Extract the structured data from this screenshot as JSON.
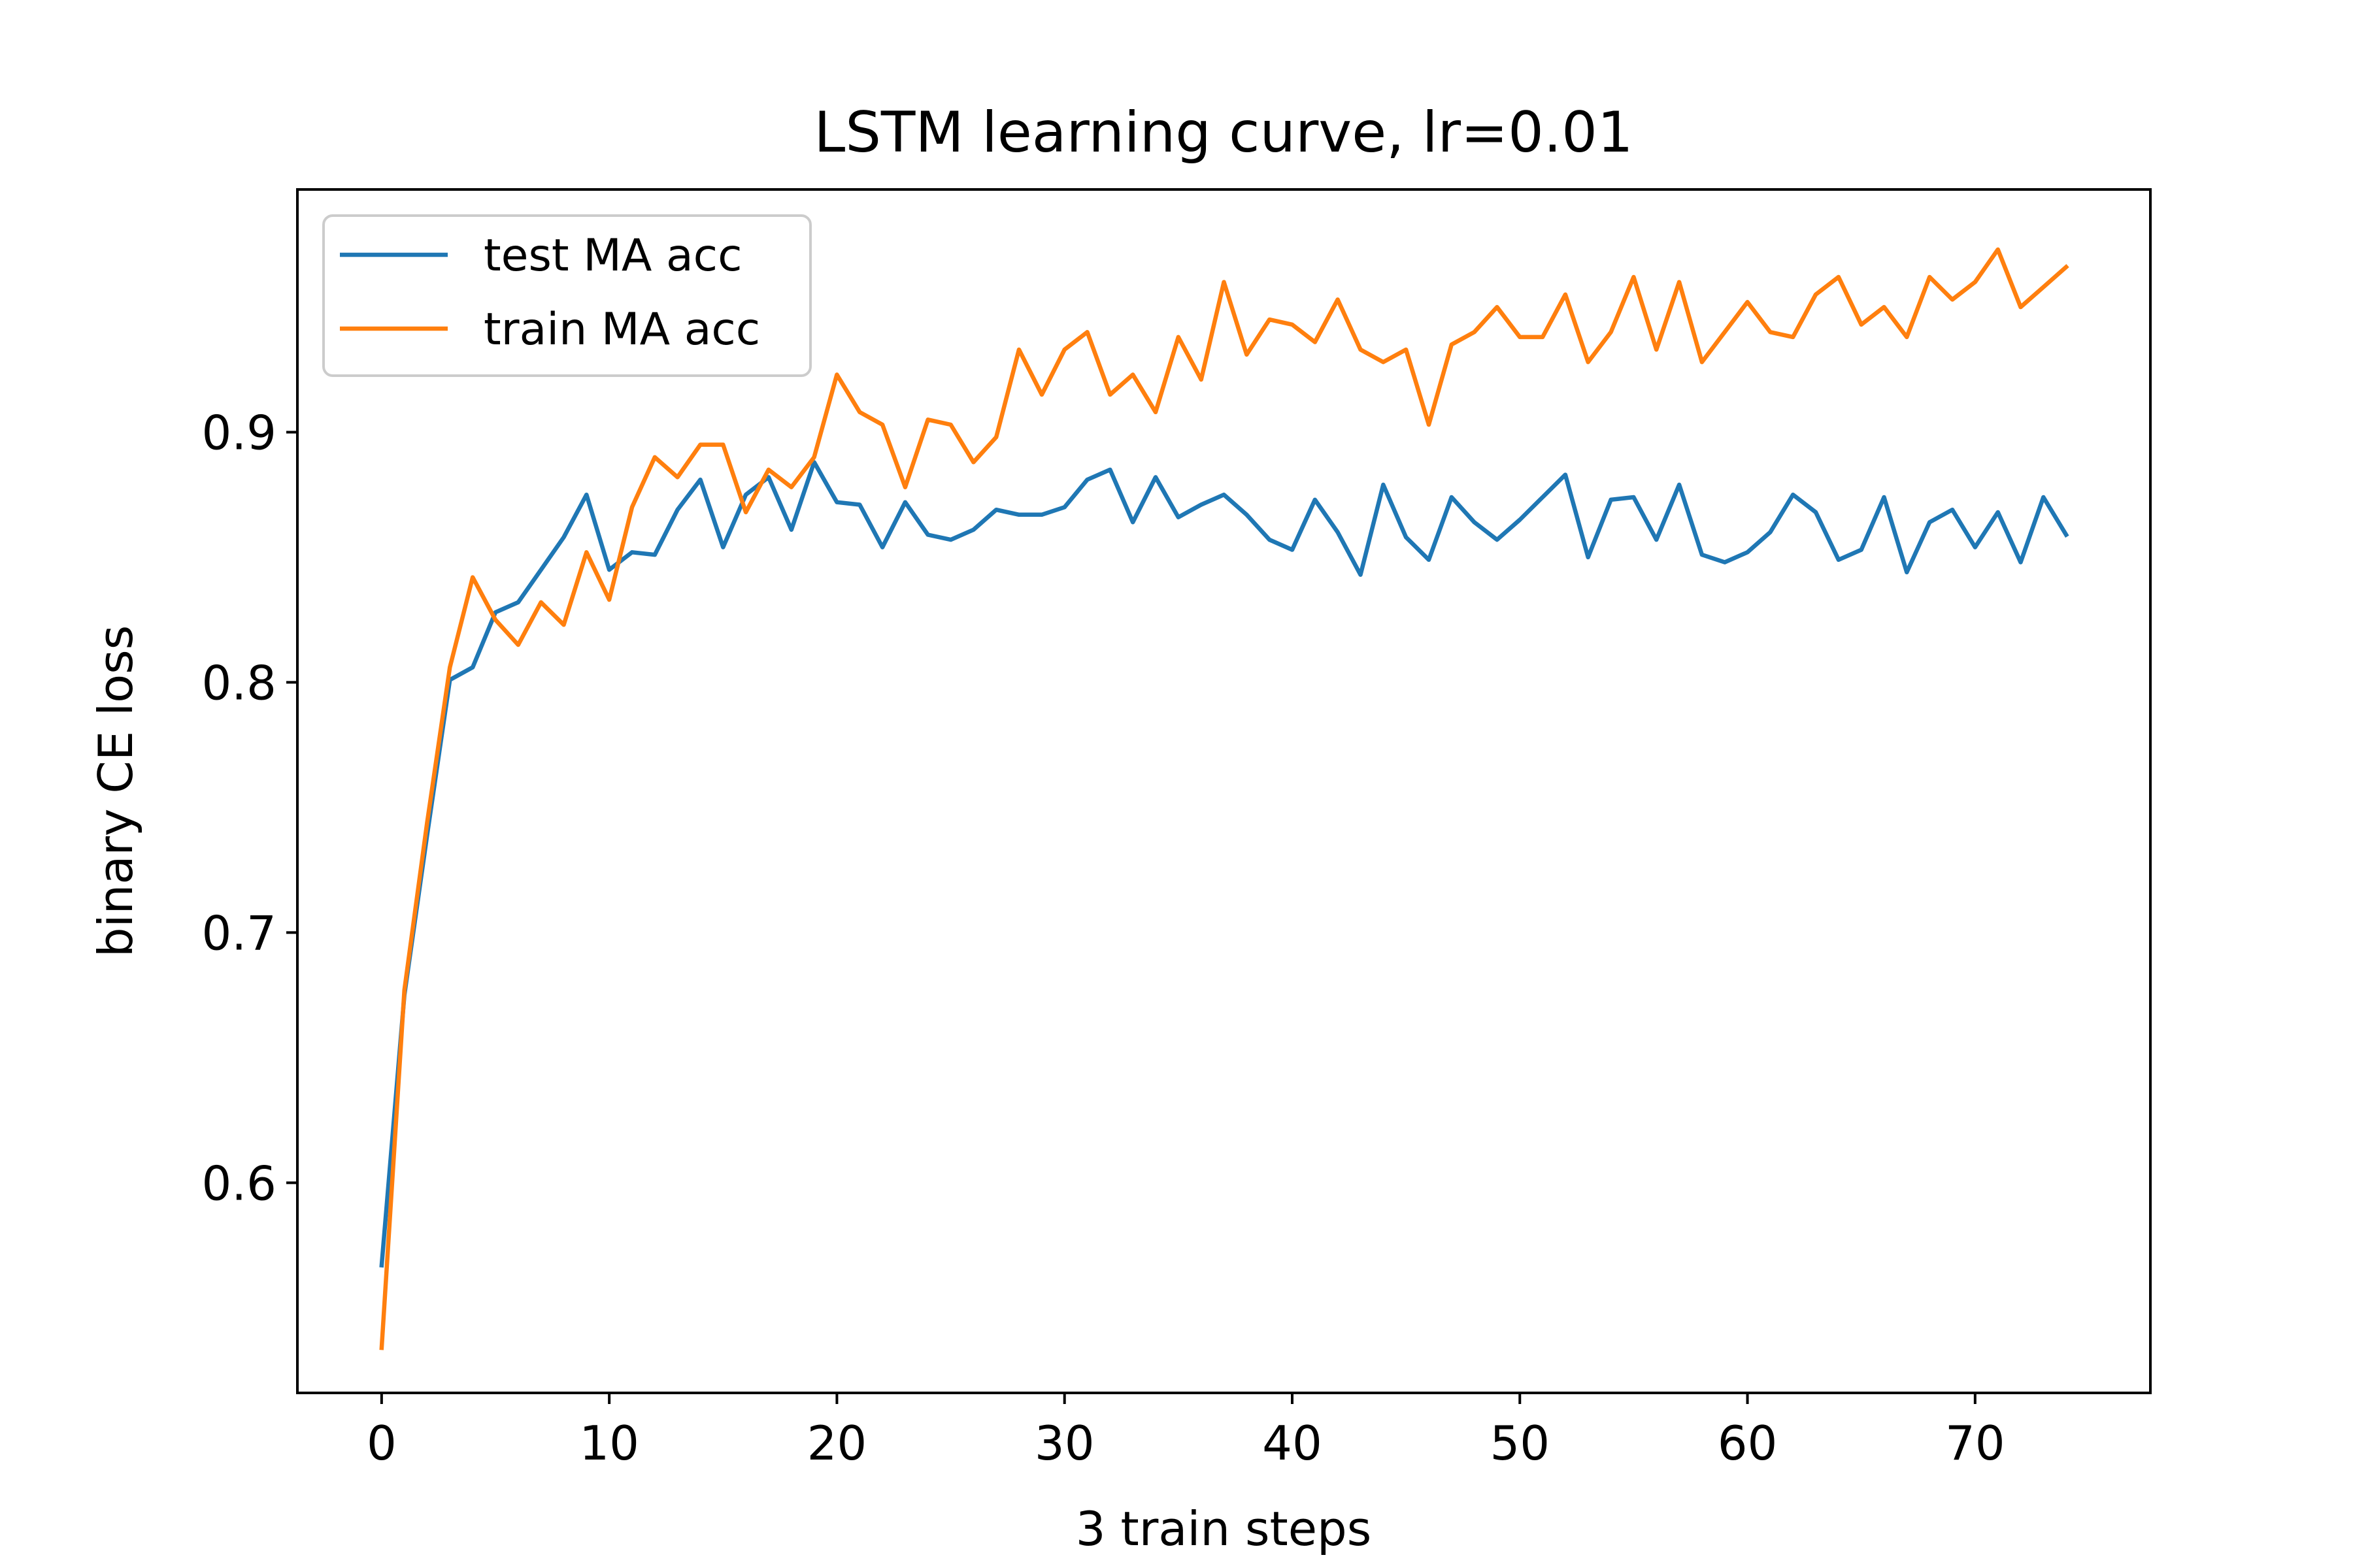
{
  "chart_data": {
    "type": "line",
    "title": "LSTM learning curve, lr=0.01",
    "xlabel": "3 train steps",
    "ylabel": "binary CE loss",
    "xlim": [
      -3.7,
      77.7
    ],
    "ylim": [
      0.516,
      0.997
    ],
    "xticks": [
      0,
      10,
      20,
      30,
      40,
      50,
      60,
      70
    ],
    "yticks": [
      0.6,
      0.7,
      0.8,
      0.9
    ],
    "ytick_labels": [
      "0.6",
      "0.7",
      "0.8",
      "0.9"
    ],
    "grid": false,
    "legend": "upper-left",
    "series": [
      {
        "name": "test MA acc",
        "color": "#1f77b4",
        "values": [
          0.567,
          0.675,
          0.739,
          0.801,
          0.806,
          0.828,
          0.832,
          0.845,
          0.858,
          0.875,
          0.845,
          0.852,
          0.851,
          0.869,
          0.881,
          0.854,
          0.875,
          0.882,
          0.861,
          0.888,
          0.872,
          0.871,
          0.854,
          0.872,
          0.859,
          0.857,
          0.861,
          0.869,
          0.867,
          0.867,
          0.87,
          0.881,
          0.885,
          0.864,
          0.882,
          0.866,
          0.871,
          0.875,
          0.867,
          0.857,
          0.853,
          0.873,
          0.86,
          0.843,
          0.879,
          0.858,
          0.849,
          0.874,
          0.864,
          0.857,
          0.865,
          0.874,
          0.883,
          0.85,
          0.873,
          0.874,
          0.857,
          0.879,
          0.851,
          0.848,
          0.852,
          0.86,
          0.875,
          0.868,
          0.849,
          0.853,
          0.874,
          0.844,
          0.864,
          0.869,
          0.854,
          0.868,
          0.848,
          0.874,
          0.859
        ]
      },
      {
        "name": "train MA acc",
        "color": "#ff7f0e",
        "values": [
          0.534,
          0.677,
          0.744,
          0.806,
          0.842,
          0.825,
          0.815,
          0.832,
          0.823,
          0.852,
          0.833,
          0.87,
          0.89,
          0.882,
          0.895,
          0.895,
          0.868,
          0.885,
          0.878,
          0.89,
          0.923,
          0.908,
          0.903,
          0.878,
          0.905,
          0.903,
          0.888,
          0.898,
          0.933,
          0.915,
          0.933,
          0.94,
          0.915,
          0.923,
          0.908,
          0.938,
          0.921,
          0.96,
          0.931,
          0.945,
          0.943,
          0.936,
          0.953,
          0.933,
          0.928,
          0.933,
          0.903,
          0.935,
          0.94,
          0.95,
          0.938,
          0.938,
          0.955,
          0.928,
          0.94,
          0.962,
          0.933,
          0.96,
          0.928,
          0.94,
          0.952,
          0.94,
          0.938,
          0.955,
          0.962,
          0.943,
          0.95,
          0.938,
          0.962,
          0.953,
          0.96,
          0.973,
          0.95,
          0.958,
          0.966
        ]
      }
    ]
  }
}
